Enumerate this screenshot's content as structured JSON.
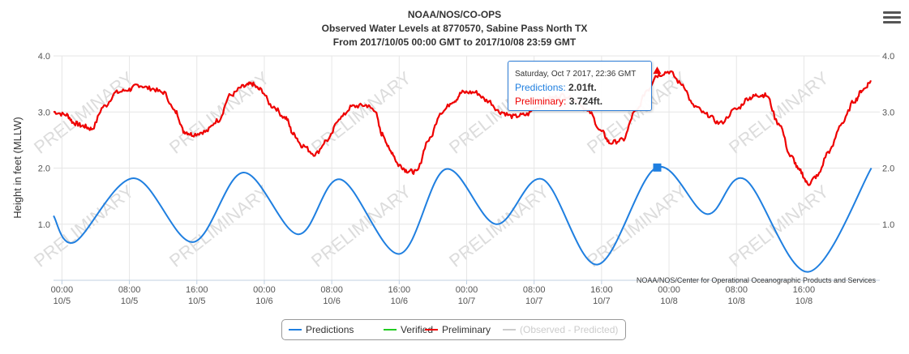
{
  "header": {
    "title_line1": "NOAA/NOS/CO-OPS",
    "title_line2": "Observed Water Levels at 8770570, Sabine Pass North TX",
    "title_line3": "From 2017/10/05 00:00 GMT to 2017/10/08 23:59 GMT"
  },
  "menu": {
    "icon": "hamburger-menu-icon"
  },
  "credits": "NOAA/NOS/Center for Operational Oceanographic Products and Services",
  "watermark": "PRELIMINARY",
  "tooltip": {
    "date": "Saturday, Oct 7 2017, 22:36 GMT",
    "predictions_label": "Predictions:",
    "predictions_value": "2.01ft.",
    "preliminary_label": "Preliminary:",
    "preliminary_value": "3.724ft."
  },
  "legend": [
    {
      "label": "Predictions",
      "color": "#1f7fe0",
      "hidden": false
    },
    {
      "label": "Verified",
      "color": "#22cc22",
      "hidden": false
    },
    {
      "label": "Preliminary",
      "color": "#ee0000",
      "hidden": false
    },
    {
      "label": "(Observed - Predicted)",
      "color": "#cccccc",
      "hidden": true
    }
  ],
  "chart_data": {
    "type": "line",
    "title": "NOAA/NOS/CO-OPS",
    "ylabel": "Height in feet (MLLW)",
    "ylim": [
      0,
      4
    ],
    "xlim_hours": [
      -1,
      97
    ],
    "y_ticks": [
      "1.0",
      "2.0",
      "3.0",
      "4.0"
    ],
    "y_tick_values": [
      1,
      2,
      3,
      4
    ],
    "x_ticks": [
      {
        "time": "00:00",
        "date": "10/5",
        "hour": 0
      },
      {
        "time": "08:00",
        "date": "10/5",
        "hour": 8
      },
      {
        "time": "16:00",
        "date": "10/5",
        "hour": 16
      },
      {
        "time": "00:00",
        "date": "10/6",
        "hour": 24
      },
      {
        "time": "08:00",
        "date": "10/6",
        "hour": 32
      },
      {
        "time": "16:00",
        "date": "10/6",
        "hour": 40
      },
      {
        "time": "00:00",
        "date": "10/7",
        "hour": 48
      },
      {
        "time": "08:00",
        "date": "10/7",
        "hour": 56
      },
      {
        "time": "16:00",
        "date": "10/7",
        "hour": 64
      },
      {
        "time": "00:00",
        "date": "10/8",
        "hour": 72
      },
      {
        "time": "08:00",
        "date": "10/8",
        "hour": 80
      },
      {
        "time": "16:00",
        "date": "10/8",
        "hour": 88
      }
    ],
    "series": [
      {
        "name": "Predictions",
        "color": "#1f7fe0",
        "x_hours": [
          -1,
          1.5,
          8.5,
          15.5,
          21.5,
          28,
          33,
          40,
          45.5,
          51.5,
          57,
          63.5,
          70.5,
          76.5,
          81,
          88.5,
          96
        ],
        "y_ft": [
          1.15,
          0.68,
          1.82,
          0.68,
          1.92,
          0.82,
          1.8,
          0.47,
          1.98,
          1.0,
          1.8,
          0.28,
          2.01,
          1.18,
          1.8,
          0.15,
          2.0
        ]
      },
      {
        "name": "Preliminary",
        "color": "#ee0000",
        "x_hours": [
          -1,
          0.5,
          1.5,
          2.5,
          3.5,
          5,
          6.5,
          8,
          9,
          10.5,
          12,
          13.5,
          14.5,
          15.5,
          17,
          18.5,
          20,
          21.5,
          22.5,
          23.5,
          25,
          26.5,
          27.5,
          28.5,
          30,
          31.5,
          33,
          34.5,
          36,
          37,
          38,
          39,
          40,
          41,
          42,
          43.5,
          45,
          46.5,
          47.5,
          49,
          50.5,
          52,
          53.5,
          55,
          56.5,
          58,
          59.5,
          61,
          62.5,
          64,
          65,
          66.5,
          68,
          69.5,
          70.5,
          72,
          73.5,
          75,
          76.5,
          78,
          80,
          81.5,
          82.5,
          83.5,
          85,
          86.5,
          87.5,
          88.5,
          89.5,
          91,
          92.5,
          94,
          95,
          96
        ],
        "y_ft": [
          3.0,
          2.95,
          2.8,
          2.75,
          2.7,
          3.1,
          3.35,
          3.4,
          3.48,
          3.42,
          3.35,
          3.0,
          2.65,
          2.6,
          2.65,
          2.85,
          3.3,
          3.45,
          3.5,
          3.4,
          3.1,
          2.9,
          2.6,
          2.4,
          2.25,
          2.5,
          2.9,
          3.1,
          3.12,
          3.05,
          2.6,
          2.3,
          2.05,
          1.95,
          1.93,
          2.5,
          3.0,
          3.2,
          3.35,
          3.35,
          3.2,
          3.0,
          2.92,
          2.95,
          3.1,
          3.25,
          3.3,
          3.2,
          3.0,
          2.65,
          2.45,
          2.5,
          3.0,
          3.4,
          3.65,
          3.72,
          3.5,
          3.1,
          2.95,
          2.8,
          3.05,
          3.25,
          3.3,
          3.3,
          2.8,
          2.2,
          1.95,
          1.72,
          1.85,
          2.3,
          2.8,
          3.2,
          3.4,
          3.55
        ]
      }
    ],
    "highlight": {
      "hour": 70.6,
      "predictions_ft": 2.01,
      "preliminary_ft": 3.724
    }
  }
}
